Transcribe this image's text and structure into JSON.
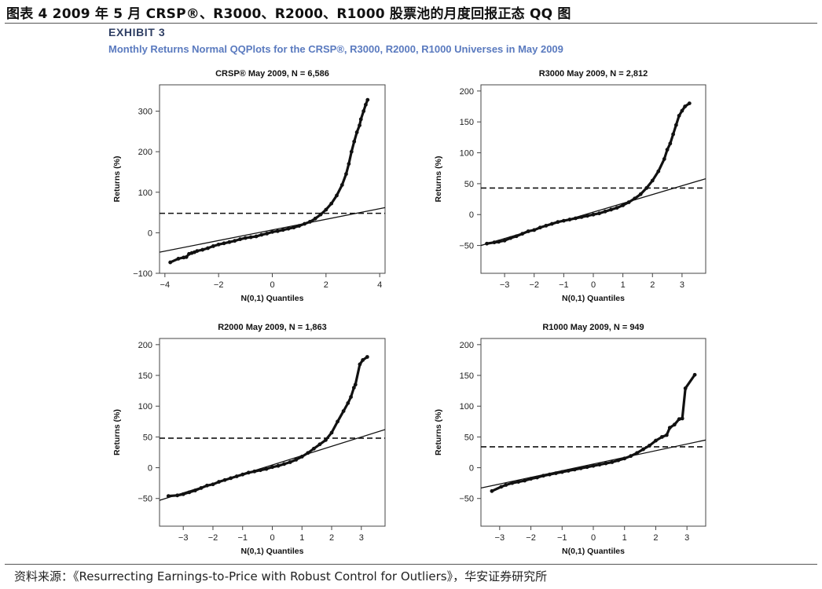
{
  "figure_title": "图表 4 2009 年 5 月 CRSP®、R3000、R2000、R1000 股票池的月度回报正态 QQ 图",
  "exhibit": {
    "label": "EXHIBIT 3",
    "subtitle": "Monthly Returns Normal QQPlots for the CRSP®, R3000, R2000, R1000 Universes in May 2009"
  },
  "source_note": "资料来源：《Resurrecting Earnings-to-Price with Robust Control for Outliers》，华安证券研究所",
  "colors": {
    "points": "#111111",
    "lines": "#111111",
    "frame": "#444444"
  },
  "chart_data": [
    {
      "type": "scatter",
      "title": "CRSP® May 2009, N = 6,586",
      "xlabel": "N(0,1) Quantiles",
      "ylabel": "Returns (%)",
      "xlim": [
        -4.2,
        4.2
      ],
      "ylim": [
        -100,
        365
      ],
      "xticks": [
        -4,
        -2,
        0,
        2,
        4
      ],
      "xtick_labels": [
        "−4",
        "−2",
        "0",
        "2",
        "4"
      ],
      "yticks": [
        -100,
        0,
        100,
        200,
        300
      ],
      "ytick_labels": [
        "−100",
        "0",
        "100",
        "200",
        "300"
      ],
      "points": [
        [
          -3.8,
          -73
        ],
        [
          -3.5,
          -64
        ],
        [
          -3.3,
          -61
        ],
        [
          -3.2,
          -60
        ],
        [
          -3.1,
          -52
        ],
        [
          -3.0,
          -50
        ],
        [
          -2.9,
          -48
        ],
        [
          -2.8,
          -45
        ],
        [
          -2.6,
          -42
        ],
        [
          -2.4,
          -38
        ],
        [
          -2.2,
          -33
        ],
        [
          -2.0,
          -29
        ],
        [
          -1.8,
          -26
        ],
        [
          -1.6,
          -23
        ],
        [
          -1.4,
          -20
        ],
        [
          -1.2,
          -16
        ],
        [
          -1.0,
          -13
        ],
        [
          -0.8,
          -11
        ],
        [
          -0.6,
          -9
        ],
        [
          -0.4,
          -5
        ],
        [
          -0.2,
          -2
        ],
        [
          0.0,
          2
        ],
        [
          0.2,
          4
        ],
        [
          0.4,
          7
        ],
        [
          0.6,
          10
        ],
        [
          0.8,
          13
        ],
        [
          1.0,
          17
        ],
        [
          1.2,
          22
        ],
        [
          1.4,
          27
        ],
        [
          1.6,
          35
        ],
        [
          1.8,
          45
        ],
        [
          2.0,
          57
        ],
        [
          2.2,
          72
        ],
        [
          2.4,
          92
        ],
        [
          2.6,
          118
        ],
        [
          2.75,
          145
        ],
        [
          2.85,
          170
        ],
        [
          2.95,
          200
        ],
        [
          3.05,
          225
        ],
        [
          3.15,
          248
        ],
        [
          3.25,
          265
        ],
        [
          3.3,
          280
        ],
        [
          3.4,
          300
        ],
        [
          3.48,
          316
        ],
        [
          3.55,
          328
        ]
      ],
      "reference_line": [
        [
          -4.2,
          -48
        ],
        [
          4.2,
          62
        ]
      ],
      "mean_line": 48
    },
    {
      "type": "scatter",
      "title": "R3000 May 2009, N = 2,812",
      "xlabel": "N(0,1) Quantiles",
      "ylabel": "Returns (%)",
      "xlim": [
        -3.8,
        3.8
      ],
      "ylim": [
        -95,
        210
      ],
      "xticks": [
        -3,
        -2,
        -1,
        0,
        1,
        2,
        3
      ],
      "xtick_labels": [
        "−3",
        "−2",
        "−1",
        "0",
        "1",
        "2",
        "3"
      ],
      "yticks": [
        -50,
        0,
        50,
        100,
        150,
        200
      ],
      "ytick_labels": [
        "−50",
        "0",
        "50",
        "100",
        "150",
        "200"
      ],
      "points": [
        [
          -3.6,
          -47
        ],
        [
          -3.35,
          -45
        ],
        [
          -3.2,
          -44
        ],
        [
          -3.0,
          -42
        ],
        [
          -2.8,
          -38
        ],
        [
          -2.6,
          -35
        ],
        [
          -2.4,
          -31
        ],
        [
          -2.2,
          -27
        ],
        [
          -2.0,
          -25
        ],
        [
          -1.8,
          -21
        ],
        [
          -1.6,
          -18
        ],
        [
          -1.4,
          -15
        ],
        [
          -1.2,
          -12
        ],
        [
          -1.0,
          -10
        ],
        [
          -0.8,
          -8
        ],
        [
          -0.6,
          -6
        ],
        [
          -0.4,
          -4
        ],
        [
          -0.2,
          -2
        ],
        [
          0.0,
          0
        ],
        [
          0.2,
          2
        ],
        [
          0.4,
          5
        ],
        [
          0.6,
          8
        ],
        [
          0.8,
          11
        ],
        [
          1.0,
          15
        ],
        [
          1.2,
          20
        ],
        [
          1.4,
          26
        ],
        [
          1.6,
          33
        ],
        [
          1.8,
          43
        ],
        [
          2.0,
          55
        ],
        [
          2.2,
          70
        ],
        [
          2.4,
          90
        ],
        [
          2.5,
          105
        ],
        [
          2.6,
          115
        ],
        [
          2.7,
          130
        ],
        [
          2.8,
          145
        ],
        [
          2.9,
          160
        ],
        [
          3.0,
          168
        ],
        [
          3.1,
          175
        ],
        [
          3.25,
          180
        ]
      ],
      "reference_line": [
        [
          -3.8,
          -50
        ],
        [
          3.8,
          58
        ]
      ],
      "mean_line": 43
    },
    {
      "type": "scatter",
      "title": "R2000 May 2009, N = 1,863",
      "xlabel": "N(0,1) Quantiles",
      "ylabel": "Returns (%)",
      "xlim": [
        -3.8,
        3.8
      ],
      "ylim": [
        -95,
        210
      ],
      "xticks": [
        -3,
        -2,
        -1,
        0,
        1,
        2,
        3
      ],
      "xtick_labels": [
        "−3",
        "−2",
        "−1",
        "0",
        "1",
        "2",
        "3"
      ],
      "yticks": [
        -50,
        0,
        50,
        100,
        150,
        200
      ],
      "ytick_labels": [
        "−50",
        "0",
        "50",
        "100",
        "150",
        "200"
      ],
      "points": [
        [
          -3.5,
          -46
        ],
        [
          -3.2,
          -45
        ],
        [
          -3.0,
          -43
        ],
        [
          -2.8,
          -40
        ],
        [
          -2.6,
          -37
        ],
        [
          -2.4,
          -33
        ],
        [
          -2.2,
          -29
        ],
        [
          -2.0,
          -27
        ],
        [
          -1.8,
          -23
        ],
        [
          -1.6,
          -20
        ],
        [
          -1.4,
          -17
        ],
        [
          -1.2,
          -14
        ],
        [
          -1.0,
          -11
        ],
        [
          -0.8,
          -8
        ],
        [
          -0.6,
          -6
        ],
        [
          -0.4,
          -4
        ],
        [
          -0.2,
          -2
        ],
        [
          0.0,
          1
        ],
        [
          0.2,
          3
        ],
        [
          0.4,
          6
        ],
        [
          0.6,
          9
        ],
        [
          0.8,
          13
        ],
        [
          1.0,
          18
        ],
        [
          1.2,
          24
        ],
        [
          1.4,
          31
        ],
        [
          1.6,
          38
        ],
        [
          1.8,
          45
        ],
        [
          2.0,
          57
        ],
        [
          2.2,
          75
        ],
        [
          2.4,
          92
        ],
        [
          2.55,
          105
        ],
        [
          2.65,
          115
        ],
        [
          2.75,
          130
        ],
        [
          2.8,
          135
        ],
        [
          2.95,
          168
        ],
        [
          3.05,
          175
        ],
        [
          3.2,
          180
        ]
      ],
      "reference_line": [
        [
          -3.8,
          -53
        ],
        [
          3.8,
          62
        ]
      ],
      "mean_line": 48
    },
    {
      "type": "scatter",
      "title": "R1000 May 2009, N = 949",
      "xlabel": "N(0,1) Quantiles",
      "ylabel": "Returns (%)",
      "xlim": [
        -3.6,
        3.6
      ],
      "ylim": [
        -95,
        210
      ],
      "xticks": [
        -3,
        -2,
        -1,
        0,
        1,
        2,
        3
      ],
      "xtick_labels": [
        "−3",
        "−2",
        "−1",
        "0",
        "1",
        "2",
        "3"
      ],
      "yticks": [
        -50,
        0,
        50,
        100,
        150,
        200
      ],
      "ytick_labels": [
        "−50",
        "0",
        "50",
        "100",
        "150",
        "200"
      ],
      "points": [
        [
          -3.25,
          -38
        ],
        [
          -2.95,
          -31
        ],
        [
          -2.8,
          -28
        ],
        [
          -2.6,
          -25
        ],
        [
          -2.4,
          -23
        ],
        [
          -2.2,
          -21
        ],
        [
          -2.0,
          -18
        ],
        [
          -1.8,
          -16
        ],
        [
          -1.6,
          -13
        ],
        [
          -1.4,
          -11
        ],
        [
          -1.2,
          -9
        ],
        [
          -1.0,
          -7
        ],
        [
          -0.8,
          -5
        ],
        [
          -0.6,
          -3
        ],
        [
          -0.4,
          -1
        ],
        [
          -0.2,
          1
        ],
        [
          0.0,
          3
        ],
        [
          0.2,
          5
        ],
        [
          0.4,
          7
        ],
        [
          0.6,
          9
        ],
        [
          0.8,
          12
        ],
        [
          1.0,
          15
        ],
        [
          1.2,
          19
        ],
        [
          1.4,
          24
        ],
        [
          1.6,
          30
        ],
        [
          1.8,
          36
        ],
        [
          2.0,
          44
        ],
        [
          2.2,
          50
        ],
        [
          2.35,
          53
        ],
        [
          2.45,
          65
        ],
        [
          2.6,
          70
        ],
        [
          2.75,
          79
        ],
        [
          2.85,
          80
        ],
        [
          2.95,
          129
        ],
        [
          3.25,
          151
        ]
      ],
      "reference_line": [
        [
          -3.6,
          -33
        ],
        [
          3.6,
          45
        ]
      ],
      "mean_line": 34
    }
  ]
}
